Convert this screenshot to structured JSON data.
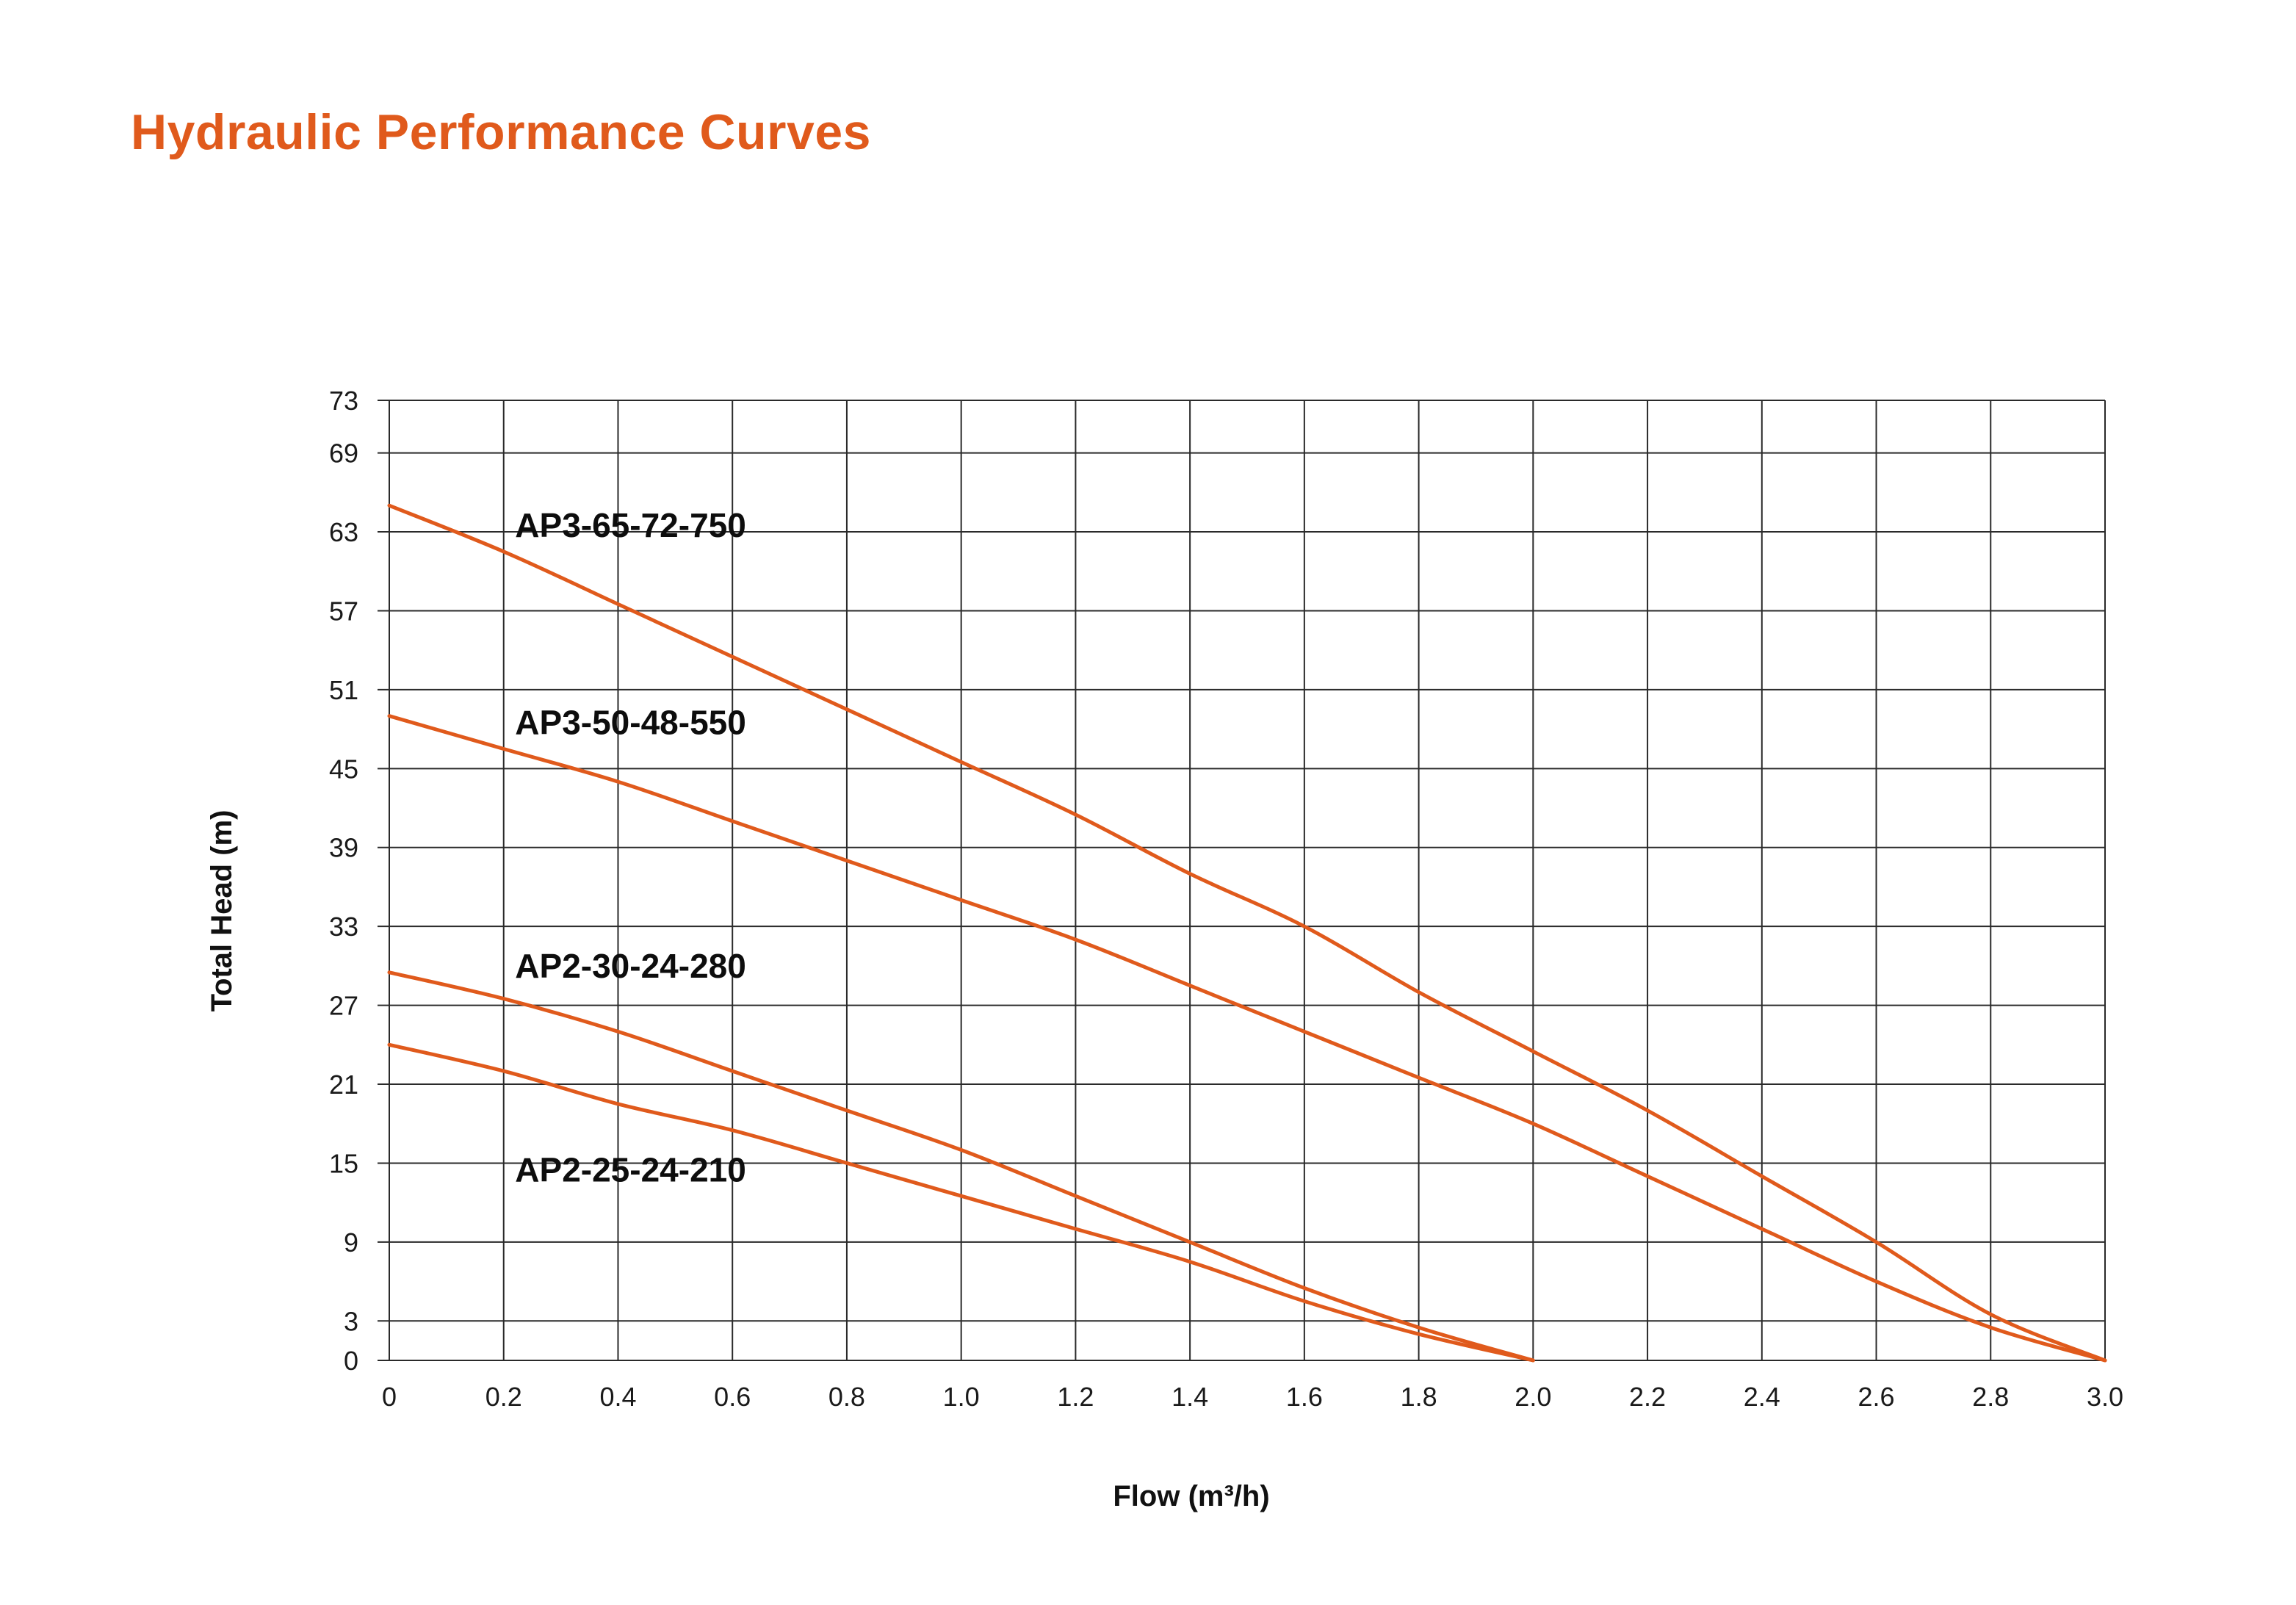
{
  "page": {
    "title": "Hydraulic Performance Curves"
  },
  "colors": {
    "title": "#e05a1c",
    "curve": "#e05a1c",
    "grid": "#2a2a2a",
    "text": "#111111"
  },
  "chart_data": {
    "type": "line",
    "title": "",
    "xlabel": "Flow (m³/h)",
    "ylabel": "Total Head (m)",
    "xlim": [
      0,
      3.0
    ],
    "ylim": [
      0,
      73
    ],
    "grid": true,
    "x_ticks": [
      0,
      0.2,
      0.4,
      0.6,
      0.8,
      1.0,
      1.2,
      1.4,
      1.6,
      1.8,
      2.0,
      2.2,
      2.4,
      2.6,
      2.8,
      3.0
    ],
    "x_tick_labels": [
      "0",
      "0.2",
      "0.4",
      "0.6",
      "0.8",
      "1.0",
      "1.2",
      "1.4",
      "1.6",
      "1.8",
      "2.0",
      "2.2",
      "2.4",
      "2.6",
      "2.8",
      "3.0"
    ],
    "y_ticks": [
      0,
      3,
      9,
      15,
      21,
      27,
      33,
      39,
      45,
      51,
      57,
      63,
      69,
      73
    ],
    "y_tick_labels": [
      "0",
      "3",
      "9",
      "15",
      "21",
      "27",
      "33",
      "39",
      "45",
      "51",
      "57",
      "63",
      "69",
      "73"
    ],
    "series": [
      {
        "name": "AP3-65-72-750",
        "x": [
          0,
          0.2,
          0.4,
          0.6,
          0.8,
          1.0,
          1.2,
          1.4,
          1.6,
          1.8,
          2.0,
          2.2,
          2.4,
          2.6,
          2.8,
          3.0
        ],
        "y": [
          65,
          61.5,
          57.5,
          53.5,
          49.5,
          45.5,
          41.5,
          37,
          33,
          28,
          23.5,
          19,
          14,
          9,
          3.5,
          0
        ]
      },
      {
        "name": "AP3-50-48-550",
        "x": [
          0,
          0.2,
          0.4,
          0.6,
          0.8,
          1.0,
          1.2,
          1.4,
          1.6,
          1.8,
          2.0,
          2.2,
          2.4,
          2.6,
          2.8,
          3.0
        ],
        "y": [
          49,
          46.5,
          44,
          41,
          38,
          35,
          32,
          28.5,
          25,
          21.5,
          18,
          14,
          10,
          6,
          2.5,
          0
        ]
      },
      {
        "name": "AP2-30-24-280",
        "x": [
          0,
          0.2,
          0.4,
          0.6,
          0.8,
          1.0,
          1.2,
          1.4,
          1.6,
          1.8,
          2.0
        ],
        "y": [
          29.5,
          27.5,
          25,
          22,
          19,
          16,
          12.5,
          9,
          5.5,
          2.5,
          0
        ]
      },
      {
        "name": "AP2-25-24-210",
        "x": [
          0,
          0.2,
          0.4,
          0.6,
          0.8,
          1.0,
          1.2,
          1.4,
          1.6,
          1.8,
          2.0
        ],
        "y": [
          24,
          22,
          19.5,
          17.5,
          15,
          12.5,
          10,
          7.5,
          4.5,
          2,
          0
        ]
      }
    ],
    "annotations": [
      {
        "text": "AP3-65-72-750",
        "series": "AP3-65-72-750",
        "x": 0.22,
        "y": 63.5
      },
      {
        "text": "AP3-50-48-550",
        "series": "AP3-50-48-550",
        "x": 0.22,
        "y": 48.5
      },
      {
        "text": "AP2-30-24-280",
        "series": "AP2-30-24-280",
        "x": 0.22,
        "y": 30
      },
      {
        "text": "AP2-25-24-210",
        "series": "AP2-25-24-210",
        "x": 0.22,
        "y": 14.5
      }
    ]
  }
}
